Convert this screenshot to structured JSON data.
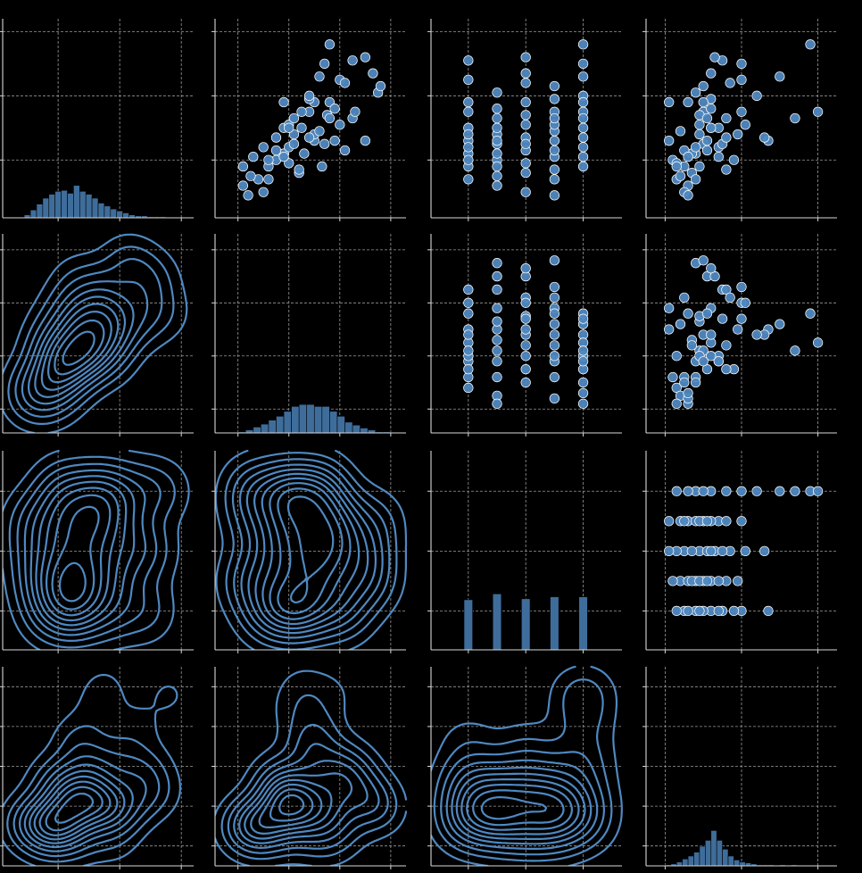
{
  "chart_data": {
    "type": "pairplot",
    "grid": true,
    "color": "#4f88c0",
    "hist_color": "#3f6d9b",
    "series": [
      {
        "lim": [
          2,
          64
        ],
        "xticks": [
          20,
          40,
          60
        ],
        "yticks": [
          20,
          40,
          60
        ],
        "values": [
          22,
          30,
          45,
          18,
          26,
          35,
          51,
          14,
          24,
          38,
          28,
          20,
          15,
          25,
          33,
          41,
          20,
          28,
          12,
          36,
          22,
          30,
          18,
          26,
          10,
          52,
          27,
          34,
          19,
          44,
          23,
          31,
          16,
          38,
          25,
          47,
          9,
          43,
          29,
          21,
          35,
          14,
          26,
          39,
          17,
          31,
          23,
          33,
          18,
          56,
          30,
          40,
          24,
          46,
          27,
          35,
          21,
          50,
          33,
          38
        ]
      },
      {
        "lim": [
          -9,
          66
        ],
        "xticks": [
          0,
          20,
          40,
          60
        ],
        "yticks": [
          0,
          20,
          40,
          60
        ],
        "values": [
          18,
          25,
          40,
          12,
          30,
          28,
          45,
          8,
          20,
          36,
          22,
          15,
          5,
          22,
          45,
          55,
          12,
          30,
          2,
          38,
          26,
          18,
          33,
          50,
          10,
          50,
          28,
          35,
          20,
          42,
          15,
          40,
          24,
          30,
          34,
          53,
          4,
          56,
          32,
          18,
          46,
          12,
          38,
          28,
          24,
          20,
          42,
          36,
          2,
          36,
          20,
          28,
          10,
          32,
          15,
          25,
          6,
          34,
          22,
          18
        ]
      },
      {
        "lim": [
          -0.3,
          6.35
        ],
        "xticks": [
          1,
          3,
          5
        ],
        "yticks": [
          1,
          3,
          5
        ],
        "values": [
          1,
          1,
          1,
          1,
          1,
          1,
          1,
          1,
          1,
          1,
          1,
          1,
          2,
          2,
          2,
          2,
          2,
          2,
          2,
          2,
          2,
          2,
          2,
          2,
          3,
          3,
          3,
          3,
          3,
          3,
          3,
          3,
          3,
          3,
          3,
          3,
          4,
          4,
          4,
          4,
          4,
          4,
          4,
          4,
          4,
          4,
          4,
          4,
          5,
          5,
          5,
          5,
          5,
          5,
          5,
          5,
          5,
          5,
          5,
          5
        ]
      },
      {
        "lim": [
          -5,
          45
        ],
        "xticks": [
          0,
          20,
          40
        ],
        "yticks": [
          0,
          10,
          20,
          30,
          40
        ],
        "values": [
          8,
          12,
          20,
          5,
          27,
          10,
          15,
          3,
          14,
          6,
          9,
          18,
          4,
          10,
          16,
          8,
          2,
          19,
          6,
          12,
          7,
          14,
          9,
          11,
          5,
          13,
          26,
          9,
          3,
          17,
          11,
          21,
          7,
          1,
          15,
          12,
          6,
          10,
          4,
          14,
          20,
          8,
          1,
          12,
          16,
          9,
          5,
          11,
          3,
          38,
          12,
          24,
          8,
          30,
          16,
          40,
          6,
          20,
          34,
          10
        ]
      }
    ],
    "histograms": [
      {
        "bins": [
          9,
          11,
          13,
          15,
          17,
          19,
          21,
          23,
          25,
          27,
          29,
          31,
          33,
          35,
          37,
          39,
          41,
          43,
          45,
          47,
          49,
          51,
          53,
          55
        ],
        "counts": [
          3,
          8,
          14,
          20,
          24,
          27,
          28,
          25,
          33,
          27,
          24,
          20,
          15,
          12,
          9,
          7,
          5,
          3,
          2,
          2,
          1,
          1,
          1
        ]
      },
      {
        "bins": [
          0,
          3,
          6,
          9,
          12,
          15,
          18,
          21,
          24,
          27,
          30,
          33,
          36,
          39,
          42,
          45,
          48,
          51,
          54,
          57,
          60
        ],
        "counts": [
          1,
          3,
          6,
          9,
          13,
          17,
          22,
          27,
          29,
          29,
          27,
          27,
          22,
          17,
          11,
          8,
          5,
          3,
          1,
          1
        ]
      },
      {
        "bins": [
          0.85,
          1.15,
          1.85,
          2.15,
          2.85,
          3.15,
          3.85,
          4.15,
          4.85,
          5.15
        ],
        "counts": [
          51,
          0,
          57,
          0,
          52,
          0,
          54,
          0,
          54
        ]
      },
      {
        "bins": [
          0,
          1.5,
          3,
          4.5,
          6,
          7.5,
          9,
          10.5,
          12,
          13.5,
          15,
          16.5,
          18,
          19.5,
          21,
          22.5,
          24,
          25.5,
          27,
          28.5,
          30,
          31.5,
          33,
          34.5,
          36
        ],
        "counts": [
          1,
          2,
          4,
          7,
          10,
          14,
          20,
          26,
          36,
          26,
          17,
          10,
          6,
          4,
          3,
          2,
          1,
          1,
          1,
          0,
          1,
          0,
          1,
          0
        ]
      }
    ]
  }
}
